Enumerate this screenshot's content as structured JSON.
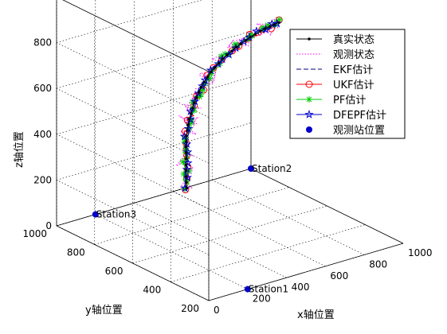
{
  "chart_data": {
    "type": "line3d",
    "title": "",
    "xlabel": "x轴位置",
    "ylabel": "y轴位置",
    "zlabel": "z轴位置",
    "xlim": [
      0,
      1000
    ],
    "ylim": [
      200,
      1000
    ],
    "zlim": [
      0,
      1000
    ],
    "xticks": [
      "0",
      "200",
      "400",
      "600",
      "800",
      "1000"
    ],
    "yticks": [
      "200",
      "400",
      "600",
      "800",
      "1000"
    ],
    "zticks": [
      "0",
      "200",
      "400",
      "600",
      "800",
      "1000"
    ],
    "grid": true,
    "legend_position": "top-right",
    "legend": [
      {
        "label": "真实状态",
        "color": "#000000",
        "style": "solid",
        "marker": "dot"
      },
      {
        "label": "观测状态",
        "color": "#ff00ff",
        "style": "dotted",
        "marker": "none"
      },
      {
        "label": "EKF估计",
        "color": "#000080",
        "style": "dashed",
        "marker": "none"
      },
      {
        "label": "UKF估计",
        "color": "#ff0000",
        "style": "solid",
        "marker": "circle"
      },
      {
        "label": "PF估计",
        "color": "#00cc00",
        "style": "solid",
        "marker": "star"
      },
      {
        "label": "DFEPF估计",
        "color": "#0000cc",
        "style": "solid",
        "marker": "pentagram"
      },
      {
        "label": "观测站位置",
        "color": "#0000cc",
        "style": "none",
        "marker": "filled-circle"
      }
    ],
    "stations": [
      {
        "name": "Station1",
        "x": 200,
        "y": 200,
        "z": 0
      },
      {
        "name": "Station2",
        "x": 1000,
        "y": 1000,
        "z": 0
      },
      {
        "name": "Station3",
        "x": 200,
        "y": 1000,
        "z": 0
      }
    ],
    "series": [
      {
        "name": "真实状态",
        "points": [
          {
            "x": 200,
            "y": 520,
            "z": 310
          },
          {
            "x": 230,
            "y": 555,
            "z": 365
          },
          {
            "x": 265,
            "y": 590,
            "z": 420
          },
          {
            "x": 300,
            "y": 625,
            "z": 470
          },
          {
            "x": 345,
            "y": 655,
            "z": 520
          },
          {
            "x": 395,
            "y": 680,
            "z": 570
          },
          {
            "x": 450,
            "y": 700,
            "z": 615
          },
          {
            "x": 515,
            "y": 715,
            "z": 660
          },
          {
            "x": 585,
            "y": 725,
            "z": 695
          },
          {
            "x": 660,
            "y": 730,
            "z": 725
          },
          {
            "x": 735,
            "y": 732,
            "z": 750
          },
          {
            "x": 810,
            "y": 732,
            "z": 768
          },
          {
            "x": 880,
            "y": 730,
            "z": 778
          }
        ]
      },
      {
        "name": "观测状态",
        "points": []
      },
      {
        "name": "EKF估计",
        "points": []
      },
      {
        "name": "UKF估计",
        "points": []
      },
      {
        "name": "PF估计",
        "points": []
      },
      {
        "name": "DFEPF估计",
        "points": []
      }
    ]
  }
}
